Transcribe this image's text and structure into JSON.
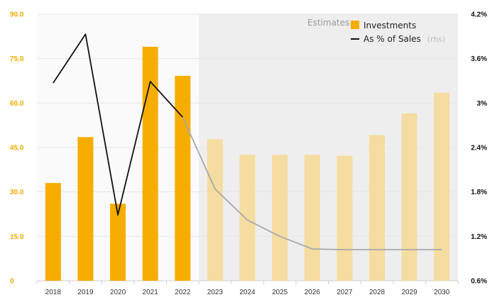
{
  "chart_data": {
    "type": "bar",
    "categories": [
      "2018",
      "2019",
      "2020",
      "2021",
      "2022",
      "2023",
      "2024",
      "2025",
      "2026",
      "2027",
      "2028",
      "2029",
      "2030"
    ],
    "series": [
      {
        "name": "Investments",
        "type": "bar",
        "axis": "left",
        "values": [
          33.0,
          48.5,
          26.0,
          79.0,
          69.2,
          47.8,
          42.5,
          42.5,
          42.5,
          42.2,
          49.2,
          56.5,
          63.5
        ]
      },
      {
        "name": "As % of Sales",
        "name_suffix": "(rhs)",
        "type": "line",
        "axis": "right",
        "values": [
          3.27,
          3.93,
          1.49,
          3.29,
          2.81,
          1.84,
          1.42,
          1.2,
          1.03,
          1.02,
          1.02,
          1.02,
          1.02
        ]
      }
    ],
    "estimate_start_index": 5,
    "estimates_label": "Estimates",
    "y_left": {
      "ylim": [
        0,
        90
      ],
      "ticks": [
        0,
        15,
        30,
        45,
        60,
        75,
        90
      ],
      "tick_labels": [
        "0",
        "15.0",
        "30.0",
        "45.0",
        "60.0",
        "75.0",
        "90.0"
      ]
    },
    "y_right": {
      "ylim": [
        0.6,
        4.2
      ],
      "ticks": [
        0.6,
        1.2,
        1.8,
        2.4,
        3.0,
        3.6,
        4.2
      ],
      "tick_labels": [
        "0.6%",
        "1.2%",
        "1.8%",
        "2.4%",
        "3%",
        "3.6%",
        "4.2%"
      ]
    },
    "legend": {
      "position": "top-right",
      "items": [
        {
          "label": "Investments",
          "marker": "square"
        },
        {
          "label": "As % of Sales",
          "suffix": "(rhs)",
          "marker": "line"
        }
      ]
    },
    "grid": true,
    "colors": {
      "bar_actual": "#f7ad00",
      "bar_estimate": "#f5dca0",
      "line_actual": "#111111",
      "line_estimate": "#a8a8a8",
      "estimate_band": "#eeeeee",
      "actual_band": "#fafafa",
      "left_tick": "#f0ad00",
      "grid": "#e6e6e6"
    }
  }
}
